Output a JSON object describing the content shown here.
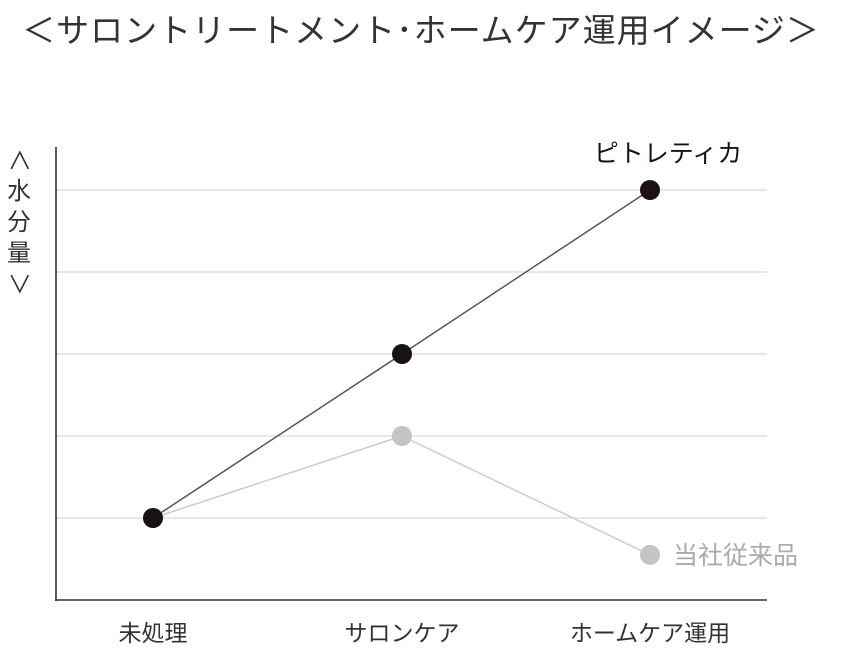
{
  "chart_data": {
    "type": "line",
    "title": "＜サロントリートメント･ホームケア運用イメージ＞",
    "ylabel": "＜水分量＞",
    "xlabel": "",
    "categories": [
      "未処理",
      "サロンケア",
      "ホームケア運用"
    ],
    "ylim": [
      0,
      5
    ],
    "ticks": [
      1,
      2,
      3,
      4,
      5
    ],
    "grid": true,
    "series": [
      {
        "name": "ピトレティカ",
        "values": [
          1,
          3,
          5
        ],
        "color": "#1a1212"
      },
      {
        "name": "当社従来品",
        "values": [
          1,
          2,
          0.55
        ],
        "color": "#c4c4c4"
      }
    ],
    "colors": {
      "axis": "#333333",
      "grid": "#d9d9d9",
      "line_main": "#555555",
      "line_sub": "#cccccc"
    }
  }
}
